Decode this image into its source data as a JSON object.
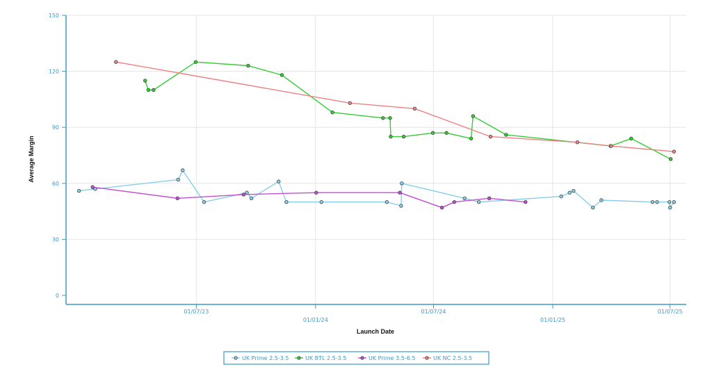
{
  "chart_data": {
    "type": "line",
    "xlabel": "Launch Date",
    "ylabel": "Average Margin",
    "ylim": [
      0,
      150
    ],
    "y_ticks": [
      0,
      30,
      60,
      90,
      120,
      150
    ],
    "x_ticks": [
      {
        "date": "2023-07-01",
        "label": "01/07/23"
      },
      {
        "date": "2024-01-01",
        "label": "01/01/24"
      },
      {
        "date": "2024-07-01",
        "label": "01/07/24"
      },
      {
        "date": "2025-01-01",
        "label": "01/01/25"
      },
      {
        "date": "2025-07-01",
        "label": "01/07/25"
      }
    ],
    "xlim": [
      "2022-12-12",
      "2025-07-26"
    ],
    "grid": true,
    "legend_position": "bottom-center",
    "series": [
      {
        "name": "UK Prime 2.5-3.5",
        "color": "#87ceeb",
        "marker_color": "#6aaec8",
        "points": [
          [
            "2023-01-01",
            56
          ],
          [
            "2023-01-26",
            57
          ],
          [
            "2023-06-03",
            62
          ],
          [
            "2023-06-10",
            67
          ],
          [
            "2023-07-13",
            50
          ],
          [
            "2023-09-17",
            55
          ],
          [
            "2023-09-24",
            52
          ],
          [
            "2023-11-05",
            61
          ],
          [
            "2023-11-17",
            50
          ],
          [
            "2024-01-10",
            50
          ],
          [
            "2024-04-20",
            50
          ],
          [
            "2024-05-12",
            48
          ],
          [
            "2024-05-13",
            60
          ],
          [
            "2024-08-18",
            52
          ],
          [
            "2024-09-09",
            50
          ],
          [
            "2025-01-14",
            53
          ],
          [
            "2025-01-27",
            55
          ],
          [
            "2025-02-02",
            56
          ],
          [
            "2025-03-04",
            47
          ],
          [
            "2025-03-17",
            51
          ],
          [
            "2025-06-04",
            50
          ],
          [
            "2025-06-11",
            50
          ],
          [
            "2025-06-30",
            50
          ],
          [
            "2025-07-01",
            47
          ],
          [
            "2025-07-07",
            50
          ]
        ]
      },
      {
        "name": "UK BTL 2.5-3.5",
        "color": "#33cc33",
        "marker_color": "#2e9e2e",
        "points": [
          [
            "2023-04-13",
            115
          ],
          [
            "2023-04-18",
            110
          ],
          [
            "2023-04-26",
            110
          ],
          [
            "2023-06-30",
            125
          ],
          [
            "2023-09-19",
            123
          ],
          [
            "2023-11-10",
            118
          ],
          [
            "2024-01-27",
            98
          ],
          [
            "2024-04-14",
            95
          ],
          [
            "2024-04-25",
            95
          ],
          [
            "2024-04-26",
            85
          ],
          [
            "2024-05-16",
            85
          ],
          [
            "2024-06-30",
            87
          ],
          [
            "2024-07-21",
            87
          ],
          [
            "2024-08-28",
            84
          ],
          [
            "2024-08-31",
            96
          ],
          [
            "2024-10-21",
            86
          ],
          [
            "2025-03-31",
            80
          ],
          [
            "2025-05-02",
            84
          ],
          [
            "2025-07-02",
            73
          ]
        ]
      },
      {
        "name": "UK Prime 3.5-6.5",
        "color": "#bf4fd1",
        "marker_color": "#9a3cab",
        "points": [
          [
            "2023-01-22",
            58
          ],
          [
            "2023-06-02",
            52
          ],
          [
            "2023-09-12",
            54
          ],
          [
            "2024-01-02",
            55
          ],
          [
            "2024-05-10",
            55
          ],
          [
            "2024-07-14",
            47
          ],
          [
            "2024-08-02",
            50
          ],
          [
            "2024-09-25",
            52
          ],
          [
            "2024-11-20",
            50
          ]
        ]
      },
      {
        "name": "UK NC 2.5-3.5",
        "color": "#f08080",
        "marker_color": "#c95555",
        "points": [
          [
            "2023-02-27",
            125
          ],
          [
            "2024-02-23",
            103
          ],
          [
            "2024-06-02",
            100
          ],
          [
            "2024-09-27",
            85
          ],
          [
            "2025-02-08",
            82
          ],
          [
            "2025-04-01",
            80
          ],
          [
            "2025-07-07",
            77
          ]
        ]
      }
    ]
  }
}
